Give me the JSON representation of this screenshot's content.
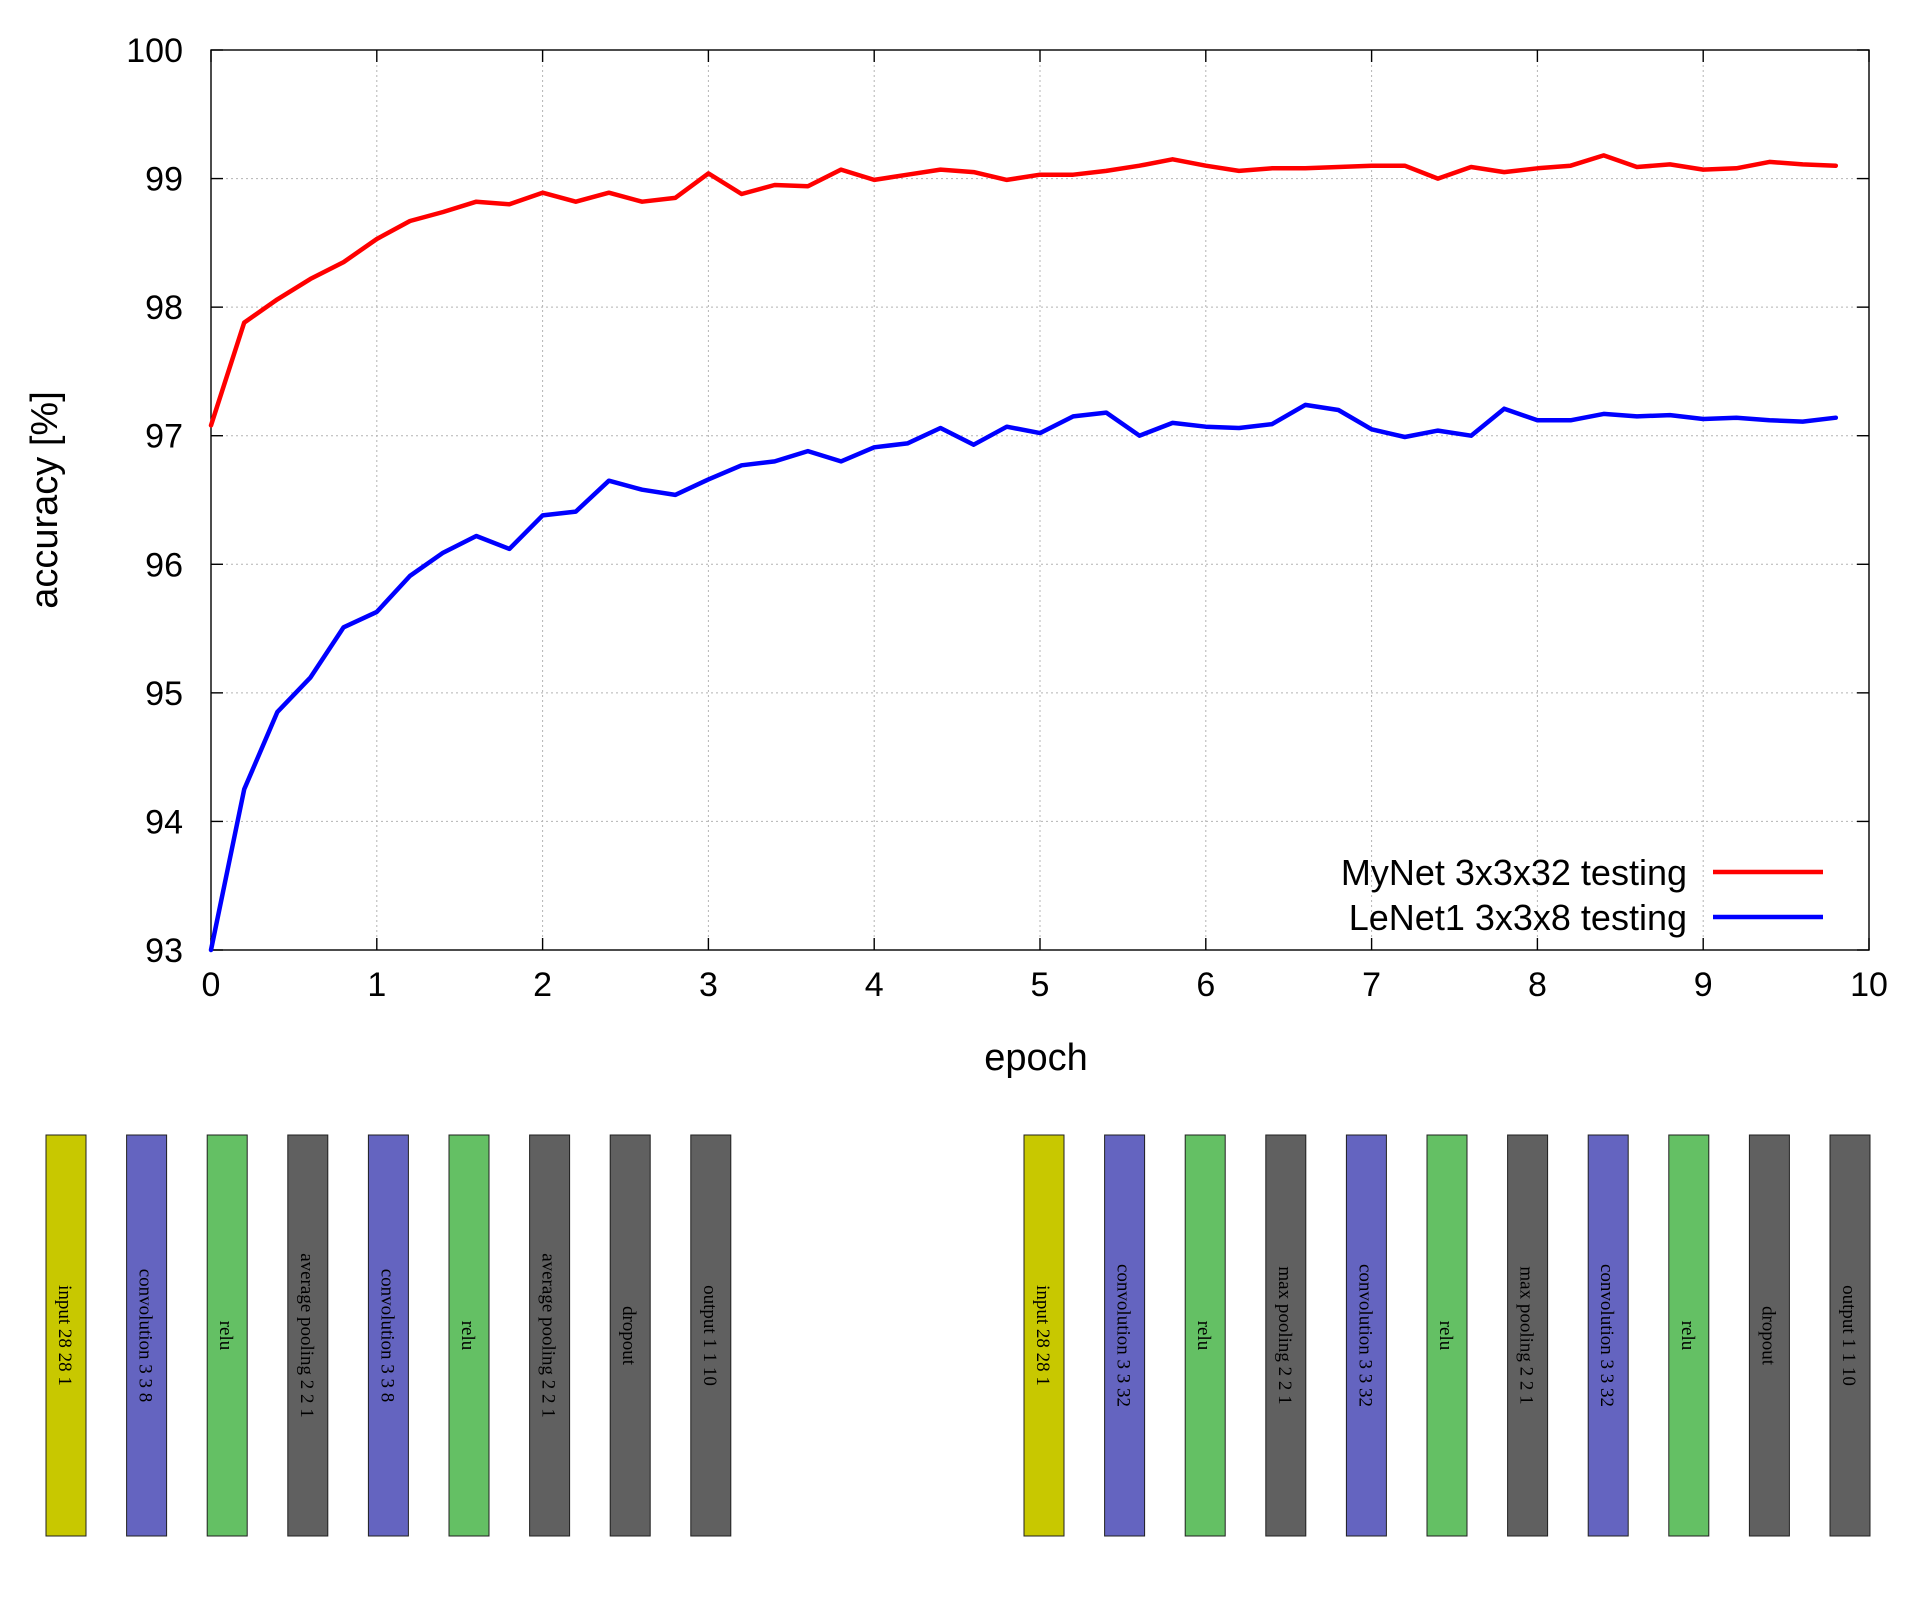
{
  "chart_data": {
    "type": "line",
    "xlabel": "epoch",
    "ylabel": "accuracy [%]",
    "xlim": [
      0,
      10
    ],
    "ylim": [
      93,
      100
    ],
    "xticks": [
      0,
      1,
      2,
      3,
      4,
      5,
      6,
      7,
      8,
      9,
      10
    ],
    "yticks": [
      93,
      94,
      95,
      96,
      97,
      98,
      99,
      100
    ],
    "grid": true,
    "legend_position": "bottom-right",
    "x": [
      0,
      0.2,
      0.4,
      0.6,
      0.8,
      1.0,
      1.2,
      1.4,
      1.6,
      1.8,
      2.0,
      2.2,
      2.4,
      2.6,
      2.8,
      3.0,
      3.2,
      3.4,
      3.6,
      3.8,
      4.0,
      4.2,
      4.4,
      4.6,
      4.8,
      5.0,
      5.2,
      5.4,
      5.6,
      5.8,
      6.0,
      6.2,
      6.4,
      6.6,
      6.8,
      7.0,
      7.2,
      7.4,
      7.6,
      7.8,
      8.0,
      8.2,
      8.4,
      8.6,
      8.8,
      9.0,
      9.2,
      9.4,
      9.6,
      9.8
    ],
    "series": [
      {
        "name": "MyNet 3x3x32 testing",
        "color": "#ff0000",
        "values": [
          97.08,
          97.88,
          98.06,
          98.22,
          98.35,
          98.53,
          98.67,
          98.74,
          98.82,
          98.8,
          98.89,
          98.82,
          98.89,
          98.82,
          98.85,
          99.04,
          98.88,
          98.95,
          98.94,
          99.07,
          98.99,
          99.03,
          99.07,
          99.05,
          98.99,
          99.03,
          99.03,
          99.06,
          99.1,
          99.15,
          99.1,
          99.06,
          99.08,
          99.08,
          99.09,
          99.1,
          99.1,
          99.0,
          99.09,
          99.05,
          99.08,
          99.1,
          99.18,
          99.09,
          99.11,
          99.07,
          99.08,
          99.13,
          99.11,
          99.1
        ]
      },
      {
        "name": "LeNet1 3x3x8 testing",
        "color": "#0000ff",
        "values": [
          93.0,
          94.25,
          94.85,
          95.12,
          95.51,
          95.63,
          95.91,
          96.09,
          96.22,
          96.12,
          96.38,
          96.41,
          96.65,
          96.58,
          96.54,
          96.66,
          96.77,
          96.8,
          96.88,
          96.8,
          96.91,
          96.94,
          97.06,
          96.93,
          97.07,
          97.02,
          97.15,
          97.18,
          97.0,
          97.1,
          97.07,
          97.06,
          97.09,
          97.24,
          97.2,
          97.05,
          96.99,
          97.04,
          97.0,
          97.21,
          97.12,
          97.12,
          97.17,
          97.15,
          97.16,
          97.13,
          97.14,
          97.12,
          97.11,
          97.14
        ]
      }
    ]
  },
  "architectures": [
    {
      "layers": [
        {
          "label": "input 28 28 1",
          "color": "#c8c800"
        },
        {
          "label": "convolution 3 3 8",
          "color": "#6464c0"
        },
        {
          "label": "relu",
          "color": "#64c064"
        },
        {
          "label": "average pooling 2 2 1",
          "color": "#606060"
        },
        {
          "label": "convolution 3 3 8",
          "color": "#6464c0"
        },
        {
          "label": "relu",
          "color": "#64c064"
        },
        {
          "label": "average pooling 2 2 1",
          "color": "#606060"
        },
        {
          "label": "dropout",
          "color": "#606060"
        },
        {
          "label": "output 1 1 10",
          "color": "#606060"
        }
      ]
    },
    {
      "layers": [
        {
          "label": "input 28 28 1",
          "color": "#c8c800"
        },
        {
          "label": "convolution 3 3 32",
          "color": "#6464c0"
        },
        {
          "label": "relu",
          "color": "#64c064"
        },
        {
          "label": "max pooling 2 2 1",
          "color": "#606060"
        },
        {
          "label": "convolution 3 3 32",
          "color": "#6464c0"
        },
        {
          "label": "relu",
          "color": "#64c064"
        },
        {
          "label": "max pooling 2 2 1",
          "color": "#606060"
        },
        {
          "label": "convolution 3 3 32",
          "color": "#6464c0"
        },
        {
          "label": "relu",
          "color": "#64c064"
        },
        {
          "label": "dropout",
          "color": "#606060"
        },
        {
          "label": "output 1 1 10",
          "color": "#606060"
        }
      ]
    }
  ]
}
